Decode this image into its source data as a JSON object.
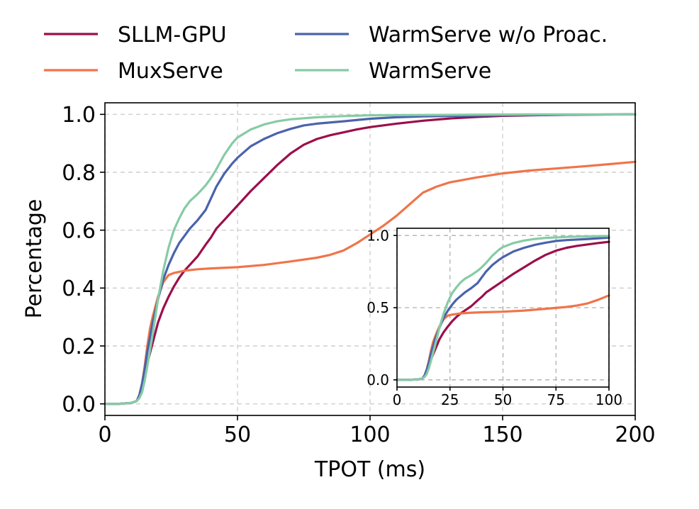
{
  "chart_data": [
    {
      "type": "line",
      "title": "",
      "xlabel": "TPOT (ms)",
      "ylabel": "Percentage",
      "xlim": [
        0,
        200
      ],
      "ylim": [
        -0.04,
        1.04
      ],
      "xticks": [
        0,
        50,
        100,
        150,
        200
      ],
      "yticks": [
        0.0,
        0.2,
        0.4,
        0.6,
        0.8,
        1.0
      ],
      "xtick_labels": [
        "0",
        "50",
        "100",
        "150",
        "200"
      ],
      "ytick_labels": [
        "0.0",
        "0.2",
        "0.4",
        "0.6",
        "0.8",
        "1.0"
      ],
      "grid": true,
      "legend_position": "top, above plot (2 columns)",
      "series": [
        {
          "name": "SLLM-GPU",
          "color": "#9b0f4b",
          "x": [
            0,
            5,
            10,
            12,
            13,
            14,
            15,
            16,
            18,
            20,
            22,
            24,
            26,
            28,
            30,
            32,
            35,
            38,
            40,
            42,
            45,
            48,
            50,
            55,
            60,
            65,
            70,
            75,
            80,
            85,
            90,
            95,
            100,
            110,
            120,
            130,
            140,
            150,
            160,
            180,
            200
          ],
          "y": [
            0.0,
            0.0,
            0.003,
            0.01,
            0.03,
            0.06,
            0.1,
            0.14,
            0.21,
            0.28,
            0.33,
            0.37,
            0.405,
            0.435,
            0.46,
            0.48,
            0.51,
            0.55,
            0.575,
            0.605,
            0.635,
            0.665,
            0.685,
            0.735,
            0.78,
            0.825,
            0.865,
            0.895,
            0.915,
            0.928,
            0.938,
            0.948,
            0.956,
            0.968,
            0.978,
            0.986,
            0.991,
            0.995,
            0.997,
            0.999,
            1.0
          ]
        },
        {
          "name": "MuxServe",
          "color": "#f0744a",
          "x": [
            0,
            5,
            10,
            12,
            13,
            14,
            15,
            16,
            17,
            18,
            20,
            22,
            24,
            26,
            28,
            30,
            35,
            40,
            50,
            60,
            70,
            80,
            85,
            90,
            95,
            100,
            105,
            110,
            115,
            120,
            125,
            130,
            140,
            150,
            160,
            170,
            180,
            190,
            200
          ],
          "y": [
            0.0,
            0.0,
            0.003,
            0.01,
            0.03,
            0.07,
            0.13,
            0.2,
            0.26,
            0.3,
            0.37,
            0.42,
            0.445,
            0.452,
            0.456,
            0.46,
            0.465,
            0.468,
            0.472,
            0.48,
            0.492,
            0.505,
            0.515,
            0.53,
            0.555,
            0.585,
            0.615,
            0.65,
            0.69,
            0.73,
            0.75,
            0.765,
            0.782,
            0.796,
            0.806,
            0.813,
            0.82,
            0.828,
            0.836
          ]
        },
        {
          "name": "WarmServe w/o Proac.",
          "color": "#4a63ab",
          "x": [
            0,
            5,
            10,
            12,
            13,
            14,
            15,
            16,
            18,
            20,
            22,
            24,
            26,
            28,
            30,
            32,
            35,
            38,
            40,
            42,
            45,
            48,
            50,
            55,
            60,
            65,
            70,
            75,
            80,
            90,
            100,
            110,
            120,
            140,
            160,
            180,
            200
          ],
          "y": [
            0.0,
            0.0,
            0.003,
            0.01,
            0.03,
            0.07,
            0.12,
            0.18,
            0.28,
            0.36,
            0.43,
            0.48,
            0.52,
            0.555,
            0.58,
            0.605,
            0.635,
            0.67,
            0.71,
            0.75,
            0.795,
            0.83,
            0.85,
            0.89,
            0.915,
            0.935,
            0.95,
            0.962,
            0.968,
            0.976,
            0.985,
            0.99,
            0.993,
            0.996,
            0.998,
            0.999,
            1.0
          ]
        },
        {
          "name": "WarmServe",
          "color": "#86cba6",
          "x": [
            0,
            5,
            10,
            12,
            13,
            14,
            15,
            16,
            18,
            20,
            22,
            24,
            26,
            28,
            30,
            32,
            35,
            38,
            40,
            42,
            45,
            48,
            50,
            55,
            60,
            65,
            70,
            80,
            90,
            100,
            120,
            140,
            160,
            200
          ],
          "y": [
            0.0,
            0.0,
            0.003,
            0.01,
            0.02,
            0.04,
            0.08,
            0.13,
            0.24,
            0.36,
            0.46,
            0.54,
            0.6,
            0.64,
            0.675,
            0.7,
            0.725,
            0.755,
            0.78,
            0.81,
            0.86,
            0.9,
            0.92,
            0.948,
            0.965,
            0.976,
            0.983,
            0.99,
            0.994,
            0.997,
            0.998,
            0.999,
            1.0,
            1.0
          ]
        }
      ]
    },
    {
      "type": "line",
      "title": "",
      "xlabel": "",
      "ylabel": "",
      "xlim": [
        0,
        100
      ],
      "ylim": [
        -0.05,
        1.05
      ],
      "xticks": [
        0,
        25,
        50,
        75,
        100
      ],
      "yticks": [
        0.0,
        0.5,
        1.0
      ],
      "xtick_labels": [
        "0",
        "25",
        "50",
        "75",
        "100"
      ],
      "ytick_labels": [
        "0.0",
        "0.5",
        "1.0"
      ],
      "grid": true,
      "legend_position": "none",
      "series": [
        {
          "name": "SLLM-GPU",
          "color": "#9b0f4b",
          "x": [
            0,
            5,
            10,
            12,
            13,
            14,
            15,
            16,
            18,
            20,
            22,
            24,
            26,
            28,
            30,
            32,
            35,
            38,
            40,
            42,
            45,
            48,
            50,
            55,
            60,
            65,
            70,
            75,
            80,
            85,
            90,
            95,
            100
          ],
          "y": [
            0.0,
            0.0,
            0.003,
            0.01,
            0.03,
            0.06,
            0.1,
            0.14,
            0.21,
            0.28,
            0.33,
            0.37,
            0.405,
            0.435,
            0.46,
            0.48,
            0.51,
            0.55,
            0.575,
            0.605,
            0.635,
            0.665,
            0.685,
            0.735,
            0.78,
            0.825,
            0.865,
            0.895,
            0.915,
            0.928,
            0.938,
            0.948,
            0.956
          ]
        },
        {
          "name": "MuxServe",
          "color": "#f0744a",
          "x": [
            0,
            5,
            10,
            12,
            13,
            14,
            15,
            16,
            17,
            18,
            20,
            22,
            24,
            26,
            28,
            30,
            35,
            40,
            50,
            60,
            70,
            80,
            85,
            90,
            95,
            100
          ],
          "y": [
            0.0,
            0.0,
            0.003,
            0.01,
            0.03,
            0.07,
            0.13,
            0.2,
            0.26,
            0.3,
            0.37,
            0.42,
            0.445,
            0.452,
            0.456,
            0.46,
            0.465,
            0.468,
            0.472,
            0.48,
            0.492,
            0.505,
            0.515,
            0.53,
            0.555,
            0.585
          ]
        },
        {
          "name": "WarmServe w/o Proac.",
          "color": "#4a63ab",
          "x": [
            0,
            5,
            10,
            12,
            13,
            14,
            15,
            16,
            18,
            20,
            22,
            24,
            26,
            28,
            30,
            32,
            35,
            38,
            40,
            42,
            45,
            48,
            50,
            55,
            60,
            65,
            70,
            75,
            80,
            90,
            100
          ],
          "y": [
            0.0,
            0.0,
            0.003,
            0.01,
            0.03,
            0.07,
            0.12,
            0.18,
            0.28,
            0.36,
            0.43,
            0.48,
            0.52,
            0.555,
            0.58,
            0.605,
            0.635,
            0.67,
            0.71,
            0.75,
            0.795,
            0.83,
            0.85,
            0.89,
            0.915,
            0.935,
            0.95,
            0.962,
            0.968,
            0.976,
            0.985
          ]
        },
        {
          "name": "WarmServe",
          "color": "#86cba6",
          "x": [
            0,
            5,
            10,
            12,
            13,
            14,
            15,
            16,
            18,
            20,
            22,
            24,
            26,
            28,
            30,
            32,
            35,
            38,
            40,
            42,
            45,
            48,
            50,
            55,
            60,
            65,
            70,
            80,
            90,
            100
          ],
          "y": [
            0.0,
            0.0,
            0.003,
            0.01,
            0.02,
            0.04,
            0.08,
            0.13,
            0.24,
            0.36,
            0.46,
            0.54,
            0.6,
            0.64,
            0.675,
            0.7,
            0.725,
            0.755,
            0.78,
            0.81,
            0.86,
            0.9,
            0.92,
            0.948,
            0.965,
            0.976,
            0.983,
            0.99,
            0.994,
            0.997
          ]
        }
      ]
    }
  ]
}
